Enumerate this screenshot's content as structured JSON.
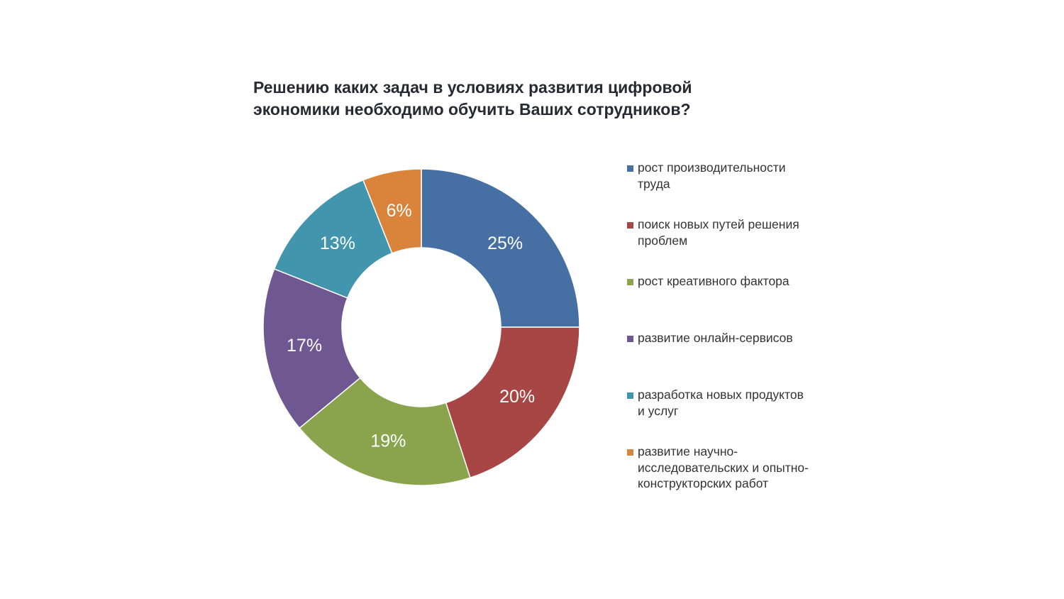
{
  "chart_data": {
    "type": "pie",
    "title": [
      "Решению каких задач в условиях развития цифровой",
      "экономики необходимо обучить Ваших сотрудников?"
    ],
    "legend_position": "right",
    "slices": [
      {
        "label": [
          "рост производительности",
          "труда"
        ],
        "value": 25,
        "display": "25%",
        "color": "#4670a4"
      },
      {
        "label": [
          "поиск новых путей решения",
          "проблем"
        ],
        "value": 20,
        "display": "20%",
        "color": "#a84646"
      },
      {
        "label": [
          "рост креативного фактора"
        ],
        "value": 19,
        "display": "19%",
        "color": "#8aa44e"
      },
      {
        "label": [
          "развитие онлайн-сервисов"
        ],
        "value": 17,
        "display": "17%",
        "color": "#6f5891"
      },
      {
        "label": [
          "разработка новых продуктов",
          "и услуг"
        ],
        "value": 13,
        "display": "13%",
        "color": "#4196ad"
      },
      {
        "label": [
          "развитие научно-",
          "исследовательских и опытно-",
          "конструкторских работ"
        ],
        "value": 6,
        "display": "6%",
        "color": "#d9833b"
      }
    ]
  }
}
